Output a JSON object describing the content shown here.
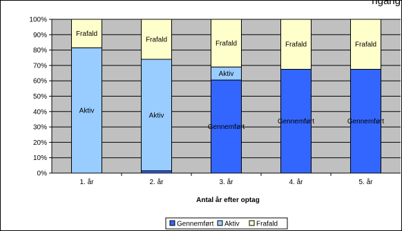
{
  "chart_data": {
    "type": "bar",
    "stacked": true,
    "percent": true,
    "title_partial": "ngang",
    "xlabel": "Antal år efter optag",
    "ylabel": "",
    "ylim": [
      0,
      100
    ],
    "yticks": [
      "0%",
      "10%",
      "20%",
      "30%",
      "40%",
      "50%",
      "60%",
      "70%",
      "80%",
      "90%",
      "100%"
    ],
    "categories": [
      "1. år",
      "2. år",
      "3. år",
      "4. år",
      "5. år"
    ],
    "series": [
      {
        "name": "Gennemført",
        "color": "#3366ff",
        "values": [
          0,
          1.5,
          60.5,
          67.5,
          67.5
        ]
      },
      {
        "name": "Aktiv",
        "color": "#99ccff",
        "values": [
          81.5,
          72.5,
          8.5,
          0,
          0
        ]
      },
      {
        "name": "Frafald",
        "color": "#ffffcc",
        "values": [
          18.5,
          26,
          31,
          32.5,
          32.5
        ]
      }
    ],
    "segment_labels": [
      [
        "",
        "",
        "Gennemført",
        "Gennemført",
        "Gennemført"
      ],
      [
        "Aktiv",
        "Aktiv",
        "Aktiv",
        "",
        ""
      ],
      [
        "Frafald",
        "Frafald",
        "Frafald",
        "Frafald",
        "Frafald"
      ]
    ],
    "grid": true,
    "plot_background": "#c0c0c0",
    "legend_position": "bottom"
  }
}
